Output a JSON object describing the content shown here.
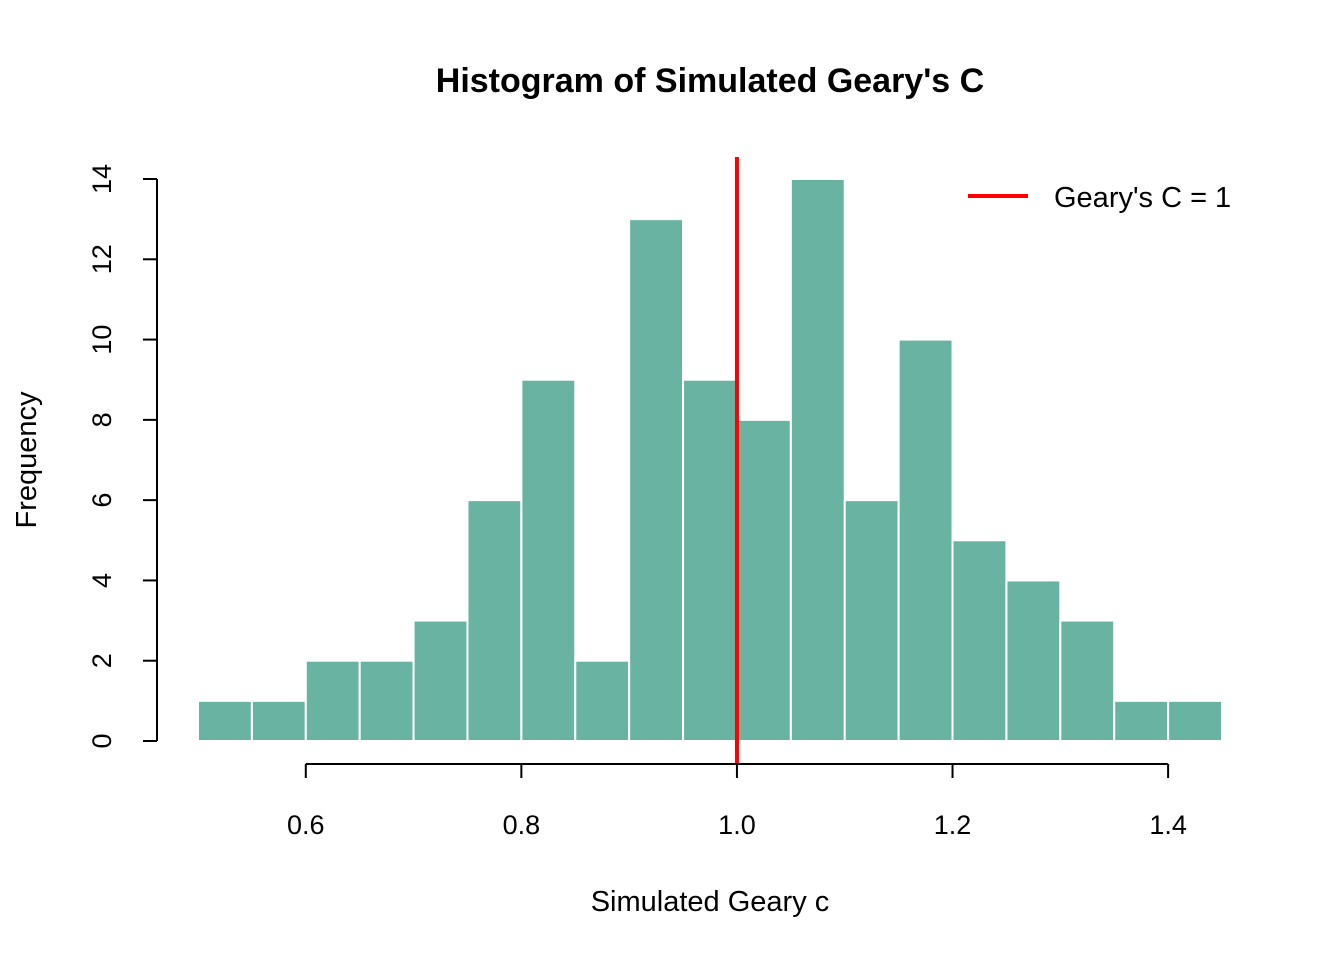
{
  "chart_data": {
    "type": "bar",
    "title": "Histogram of Simulated Geary's C",
    "xlabel": "Simulated Geary c",
    "ylabel": "Frequency",
    "bin_edges": [
      0.5,
      0.55,
      0.6,
      0.65,
      0.7,
      0.75,
      0.8,
      0.85,
      0.9,
      0.95,
      1.0,
      1.05,
      1.1,
      1.15,
      1.2,
      1.25,
      1.3,
      1.35,
      1.4,
      1.45
    ],
    "values": [
      1,
      1,
      2,
      2,
      3,
      6,
      9,
      2,
      13,
      9,
      8,
      14,
      6,
      10,
      5,
      4,
      3,
      1,
      1
    ],
    "xlim": [
      0.5,
      1.45
    ],
    "ylim": [
      0,
      14
    ],
    "x_ticks": [
      "0.6",
      "0.8",
      "1.0",
      "1.2",
      "1.4"
    ],
    "x_tick_values": [
      0.6,
      0.8,
      1.0,
      1.2,
      1.4
    ],
    "y_ticks": [
      "0",
      "2",
      "4",
      "6",
      "8",
      "10",
      "12",
      "14"
    ],
    "y_tick_values": [
      0,
      2,
      4,
      6,
      8,
      10,
      12,
      14
    ],
    "bar_color": "#69b3a2",
    "bar_border_color": "#ffffff",
    "reference_line": {
      "x": 1.0,
      "color": "#ff0000"
    },
    "legend": {
      "position": "top-right",
      "label": "Geary's C = 1",
      "color": "#ff0000"
    },
    "grid": false
  }
}
